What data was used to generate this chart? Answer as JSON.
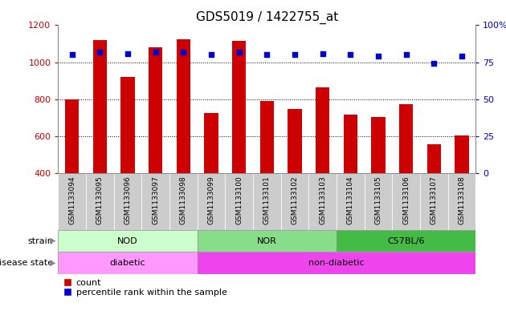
{
  "title": "GDS5019 / 1422755_at",
  "samples": [
    "GSM1133094",
    "GSM1133095",
    "GSM1133096",
    "GSM1133097",
    "GSM1133098",
    "GSM1133099",
    "GSM1133100",
    "GSM1133101",
    "GSM1133102",
    "GSM1133103",
    "GSM1133104",
    "GSM1133105",
    "GSM1133106",
    "GSM1133107",
    "GSM1133108"
  ],
  "counts": [
    800,
    1120,
    920,
    1080,
    1125,
    725,
    1115,
    790,
    745,
    865,
    715,
    705,
    775,
    555,
    605
  ],
  "percentiles": [
    80,
    82,
    81,
    82,
    82,
    80,
    82,
    80,
    80,
    81,
    80,
    79,
    80,
    74,
    79
  ],
  "ylim_left": [
    400,
    1200
  ],
  "ylim_right": [
    0,
    100
  ],
  "yticks_left": [
    400,
    600,
    800,
    1000,
    1200
  ],
  "yticks_right": [
    0,
    25,
    50,
    75,
    100
  ],
  "bar_color": "#cc0000",
  "dot_color": "#0000cc",
  "bar_width": 0.5,
  "nod_color": "#ccffcc",
  "nor_color": "#88dd88",
  "c57_color": "#44bb44",
  "diabetic_color": "#ff99ff",
  "non_diabetic_color": "#ee44ee",
  "tick_label_color_left": "#cc0000",
  "tick_label_color_right": "#0000cc",
  "bg_xtick": "#cccccc",
  "legend_count_label": "count",
  "legend_pct_label": "percentile rank within the sample"
}
